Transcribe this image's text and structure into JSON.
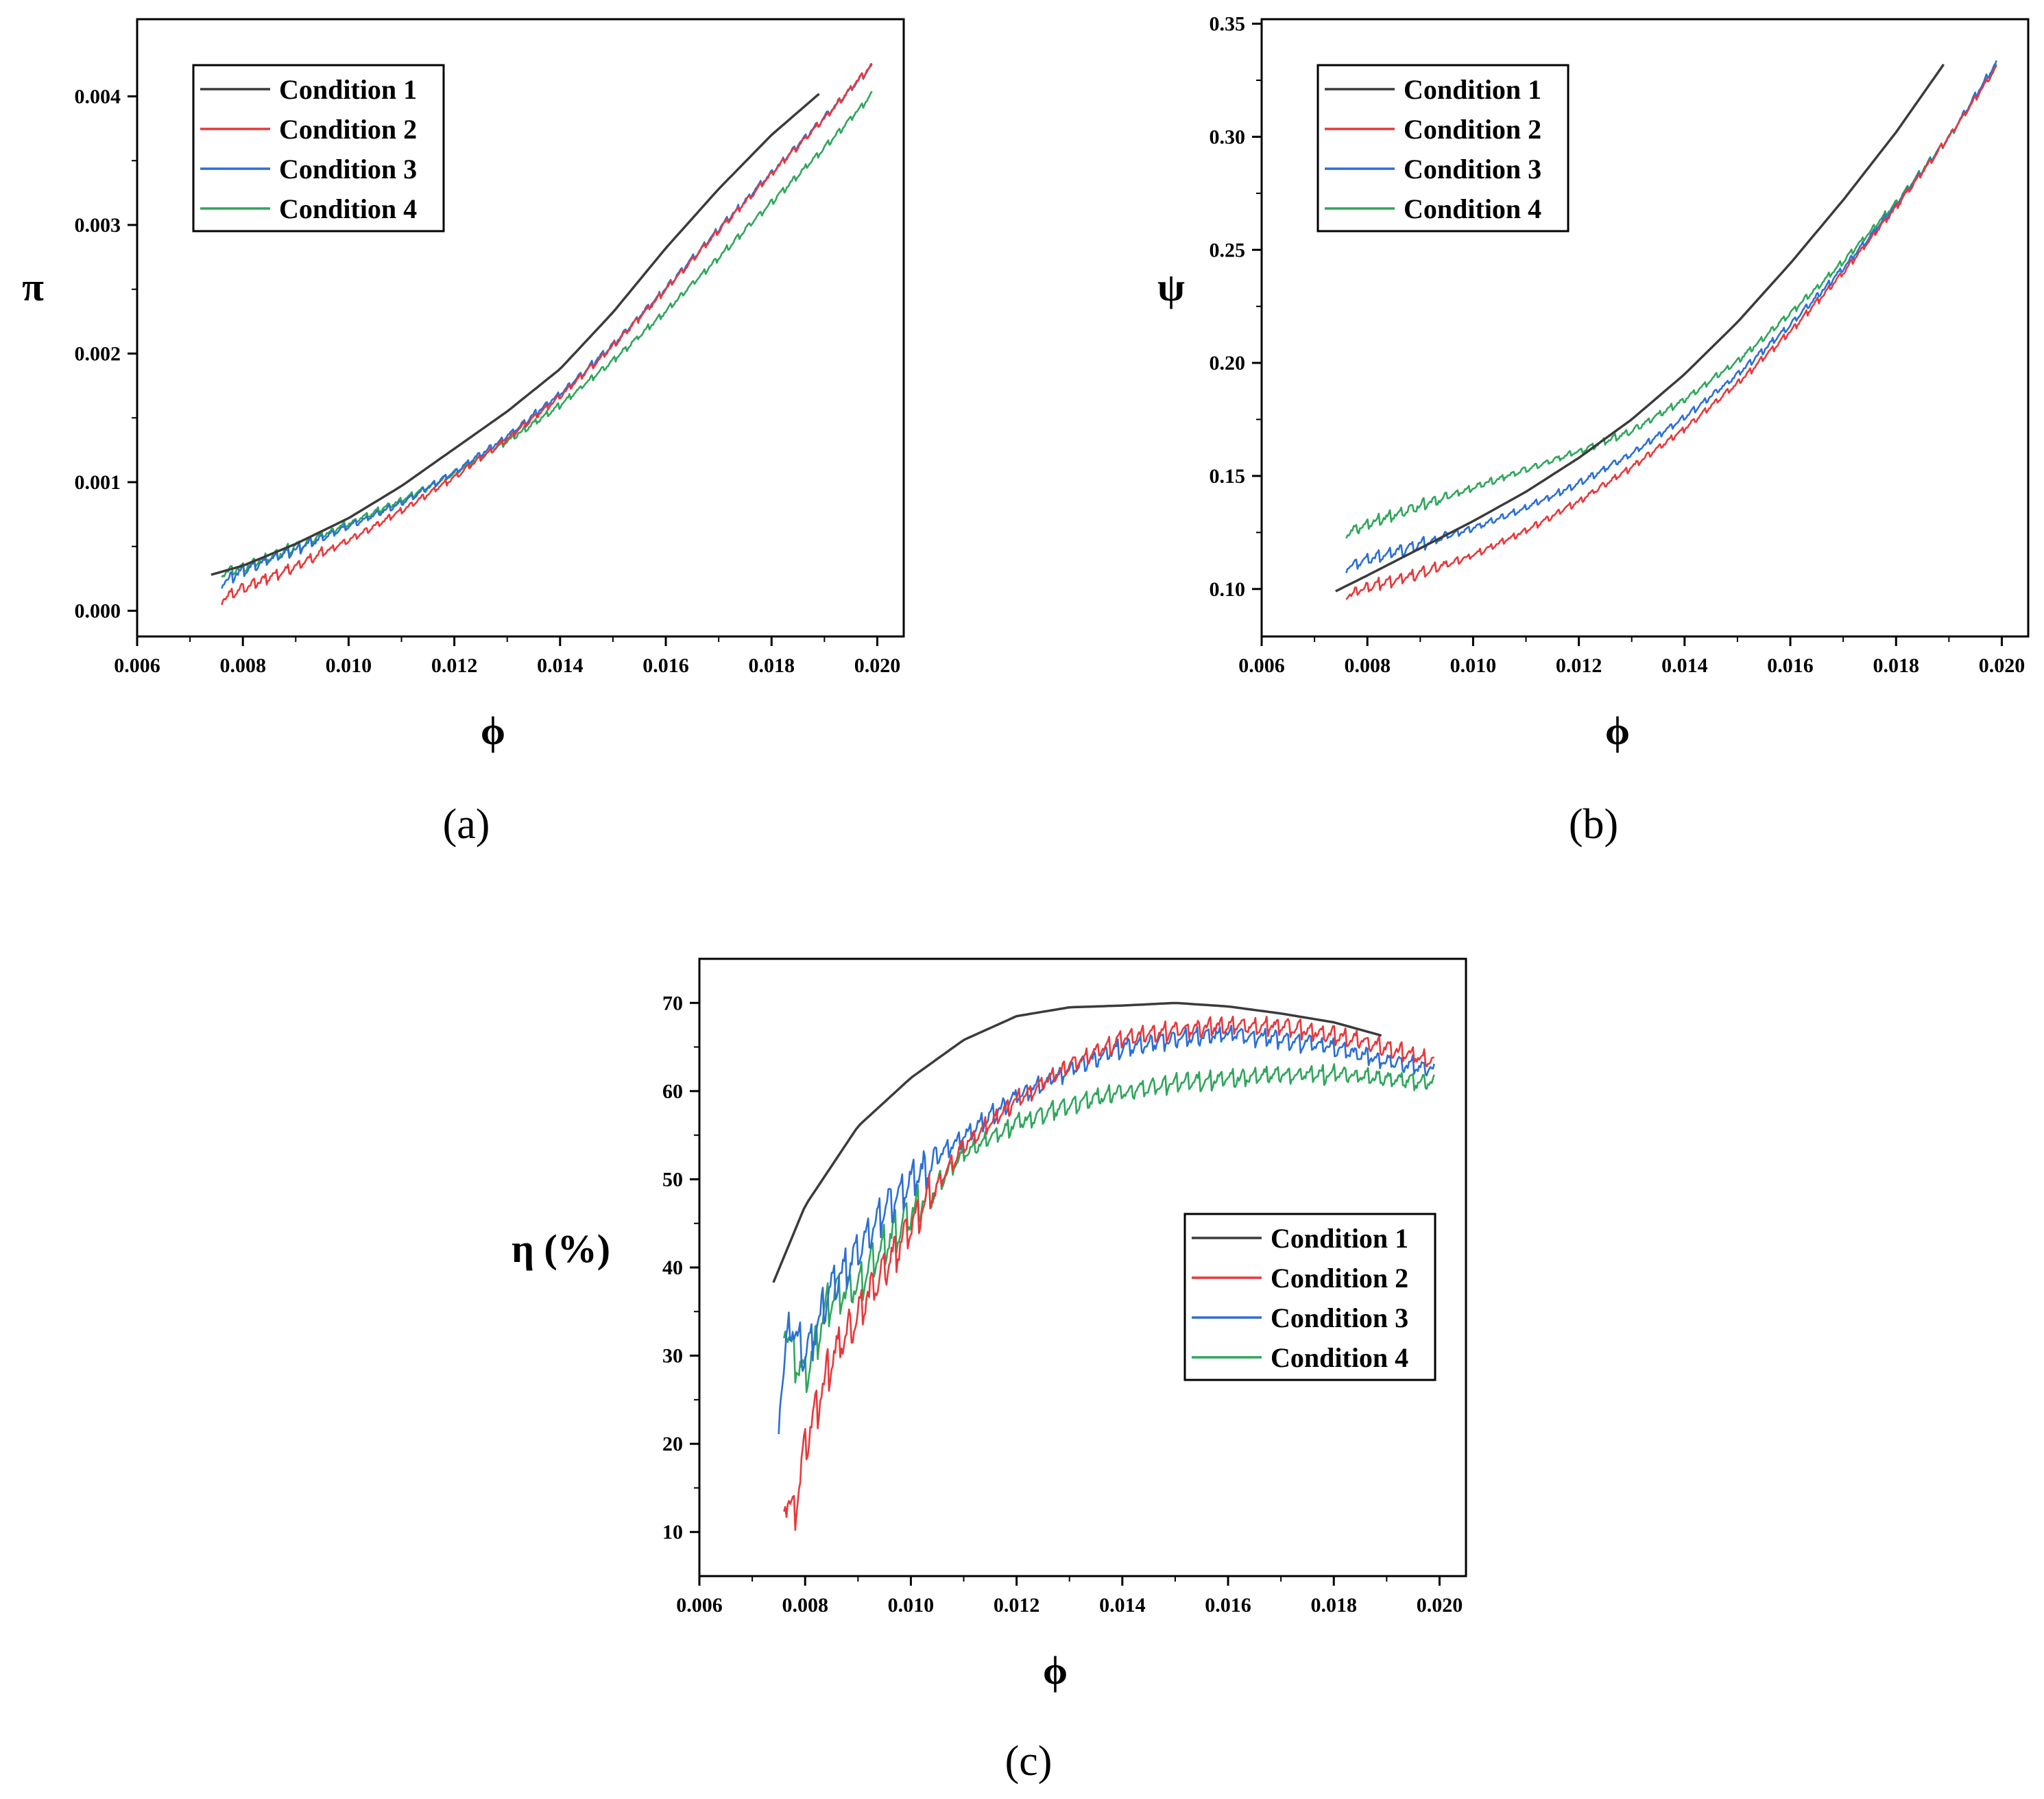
{
  "figure": {
    "panel_labels": [
      "(a)",
      "(b)",
      "(c)"
    ]
  },
  "chart_data": [
    {
      "type": "line",
      "panel": "(a)",
      "xlabel": "ϕ",
      "ylabel": "π",
      "xlim": [
        0.006,
        0.0205
      ],
      "ylim": [
        -0.0002,
        0.0046
      ],
      "xticks": [
        0.006,
        0.008,
        0.01,
        0.012,
        0.014,
        0.016,
        0.018,
        0.02
      ],
      "xtick_labels": [
        "0.006",
        "0.008",
        "0.010",
        "0.012",
        "0.014",
        "0.016",
        "0.018",
        "0.020"
      ],
      "yticks": [
        0.0,
        0.001,
        0.002,
        0.003,
        0.004
      ],
      "ytick_labels": [
        "0.000",
        "0.001",
        "0.002",
        "0.003",
        "0.004"
      ],
      "legend_position": "top-left",
      "series": [
        {
          "name": "Condition 1",
          "color": "#3b3b3b",
          "x": [
            0.0074,
            0.008,
            0.009,
            0.01,
            0.011,
            0.012,
            0.013,
            0.014,
            0.015,
            0.016,
            0.017,
            0.018,
            0.0189
          ],
          "y": [
            0.00028,
            0.00035,
            0.00052,
            0.00072,
            0.00097,
            0.00126,
            0.00155,
            0.00188,
            0.00232,
            0.00282,
            0.00328,
            0.0037,
            0.00402
          ]
        },
        {
          "name": "Condition 2",
          "color": "#e8383b",
          "x": [
            0.0076,
            0.008,
            0.009,
            0.01,
            0.011,
            0.012,
            0.013,
            0.014,
            0.015,
            0.016,
            0.017,
            0.018,
            0.019,
            0.0199
          ],
          "y": [
            0.0001,
            0.00018,
            0.00035,
            0.00055,
            0.00078,
            0.00104,
            0.00134,
            0.00167,
            0.00206,
            0.0025,
            0.00296,
            0.0034,
            0.00383,
            0.00425
          ]
        },
        {
          "name": "Condition 3",
          "color": "#2b6fd6",
          "x": [
            0.0076,
            0.008,
            0.009,
            0.01,
            0.011,
            0.012,
            0.013,
            0.014,
            0.015,
            0.016,
            0.017,
            0.018,
            0.019,
            0.0199
          ],
          "y": [
            0.00022,
            0.00032,
            0.00048,
            0.00066,
            0.00084,
            0.00108,
            0.00136,
            0.00169,
            0.00207,
            0.00251,
            0.00297,
            0.00341,
            0.00384,
            0.00424
          ]
        },
        {
          "name": "Condition 4",
          "color": "#2fa65b",
          "x": [
            0.0076,
            0.008,
            0.009,
            0.01,
            0.011,
            0.012,
            0.013,
            0.014,
            0.015,
            0.016,
            0.017,
            0.018,
            0.019,
            0.0199
          ],
          "y": [
            0.0003,
            0.00034,
            0.0005,
            0.00068,
            0.00086,
            0.00107,
            0.00132,
            0.0016,
            0.00195,
            0.00233,
            0.00275,
            0.00318,
            0.0036,
            0.00402
          ]
        }
      ]
    },
    {
      "type": "line",
      "panel": "(b)",
      "xlabel": "ϕ",
      "ylabel": "ψ",
      "xlim": [
        0.006,
        0.0205
      ],
      "ylim": [
        0.079,
        0.352
      ],
      "xticks": [
        0.006,
        0.008,
        0.01,
        0.012,
        0.014,
        0.016,
        0.018,
        0.02
      ],
      "xtick_labels": [
        "0.006",
        "0.008",
        "0.010",
        "0.012",
        "0.014",
        "0.016",
        "0.018",
        "0.020"
      ],
      "yticks": [
        0.1,
        0.15,
        0.2,
        0.25,
        0.3,
        0.35
      ],
      "ytick_labels": [
        "0.10",
        "0.15",
        "0.20",
        "0.25",
        "0.30",
        "0.35"
      ],
      "legend_position": "top-left",
      "series": [
        {
          "name": "Condition 1",
          "color": "#3b3b3b",
          "x": [
            0.0074,
            0.008,
            0.009,
            0.01,
            0.011,
            0.012,
            0.013,
            0.014,
            0.015,
            0.016,
            0.017,
            0.018,
            0.0189
          ],
          "y": [
            0.099,
            0.106,
            0.118,
            0.13,
            0.143,
            0.158,
            0.175,
            0.195,
            0.218,
            0.244,
            0.272,
            0.302,
            0.332
          ]
        },
        {
          "name": "Condition 2",
          "color": "#e8383b",
          "x": [
            0.0076,
            0.008,
            0.009,
            0.01,
            0.011,
            0.012,
            0.013,
            0.014,
            0.015,
            0.016,
            0.017,
            0.018,
            0.019,
            0.0199
          ],
          "y": [
            0.097,
            0.101,
            0.107,
            0.115,
            0.126,
            0.139,
            0.154,
            0.171,
            0.191,
            0.214,
            0.24,
            0.269,
            0.3,
            0.331
          ]
        },
        {
          "name": "Condition 3",
          "color": "#2b6fd6",
          "x": [
            0.0076,
            0.008,
            0.009,
            0.01,
            0.011,
            0.012,
            0.013,
            0.014,
            0.015,
            0.016,
            0.017,
            0.018,
            0.019,
            0.0199
          ],
          "y": [
            0.11,
            0.113,
            0.12,
            0.127,
            0.136,
            0.147,
            0.16,
            0.176,
            0.195,
            0.217,
            0.242,
            0.27,
            0.3,
            0.333
          ]
        },
        {
          "name": "Condition 4",
          "color": "#2fa65b",
          "x": [
            0.0076,
            0.008,
            0.009,
            0.01,
            0.011,
            0.012,
            0.013,
            0.014,
            0.015,
            0.016,
            0.017,
            0.018,
            0.019,
            0.0199
          ],
          "y": [
            0.125,
            0.129,
            0.137,
            0.145,
            0.153,
            0.161,
            0.17,
            0.184,
            0.201,
            0.222,
            0.245,
            0.271,
            0.3,
            0.331
          ]
        }
      ]
    },
    {
      "type": "line",
      "panel": "(c)",
      "xlabel": "ϕ",
      "ylabel": "η (%)",
      "xlim": [
        0.006,
        0.0205
      ],
      "ylim": [
        5,
        75
      ],
      "xticks": [
        0.006,
        0.008,
        0.01,
        0.012,
        0.014,
        0.016,
        0.018,
        0.02
      ],
      "xtick_labels": [
        "0.006",
        "0.008",
        "0.010",
        "0.012",
        "0.014",
        "0.016",
        "0.018",
        "0.020"
      ],
      "yticks": [
        10,
        20,
        30,
        40,
        50,
        60,
        70
      ],
      "ytick_labels": [
        "10",
        "20",
        "30",
        "40",
        "50",
        "60",
        "70"
      ],
      "legend_position": "center-right",
      "series": [
        {
          "name": "Condition 1",
          "color": "#3b3b3b",
          "x": [
            0.0074,
            0.008,
            0.009,
            0.01,
            0.011,
            0.012,
            0.013,
            0.014,
            0.015,
            0.016,
            0.017,
            0.018,
            0.0189
          ],
          "y": [
            38.3,
            47.0,
            56.0,
            61.5,
            65.8,
            68.5,
            69.5,
            69.7,
            70.0,
            69.6,
            68.8,
            67.8,
            66.3
          ]
        },
        {
          "name": "Condition 2",
          "color": "#e8383b",
          "x": [
            0.0076,
            0.0078,
            0.008,
            0.0085,
            0.009,
            0.0095,
            0.01,
            0.011,
            0.012,
            0.013,
            0.014,
            0.015,
            0.016,
            0.017,
            0.018,
            0.019,
            0.0199
          ],
          "y": [
            14.0,
            12.5,
            20.0,
            30.0,
            35.0,
            40.0,
            45.0,
            54.0,
            59.0,
            63.0,
            66.0,
            67.0,
            67.5,
            67.5,
            66.5,
            65.0,
            63.5
          ]
        },
        {
          "name": "Condition 3",
          "color": "#2b6fd6",
          "x": [
            0.0075,
            0.0077,
            0.008,
            0.0085,
            0.009,
            0.0095,
            0.01,
            0.011,
            0.012,
            0.013,
            0.014,
            0.015,
            0.016,
            0.017,
            0.018,
            0.019,
            0.0199
          ],
          "y": [
            24.0,
            34.0,
            30.0,
            38.0,
            42.0,
            47.0,
            50.0,
            55.0,
            59.5,
            62.5,
            65.0,
            66.0,
            66.5,
            66.0,
            65.0,
            63.5,
            62.5
          ]
        },
        {
          "name": "Condition 4",
          "color": "#2fa65b",
          "x": [
            0.0076,
            0.0078,
            0.008,
            0.0085,
            0.009,
            0.0095,
            0.01,
            0.011,
            0.012,
            0.013,
            0.014,
            0.015,
            0.016,
            0.017,
            0.018,
            0.019,
            0.0199
          ],
          "y": [
            34.5,
            30.0,
            28.0,
            37.0,
            38.0,
            43.0,
            46.0,
            53.0,
            56.5,
            58.5,
            60.0,
            61.0,
            61.5,
            62.0,
            62.0,
            61.5,
            61.0
          ]
        }
      ]
    }
  ]
}
